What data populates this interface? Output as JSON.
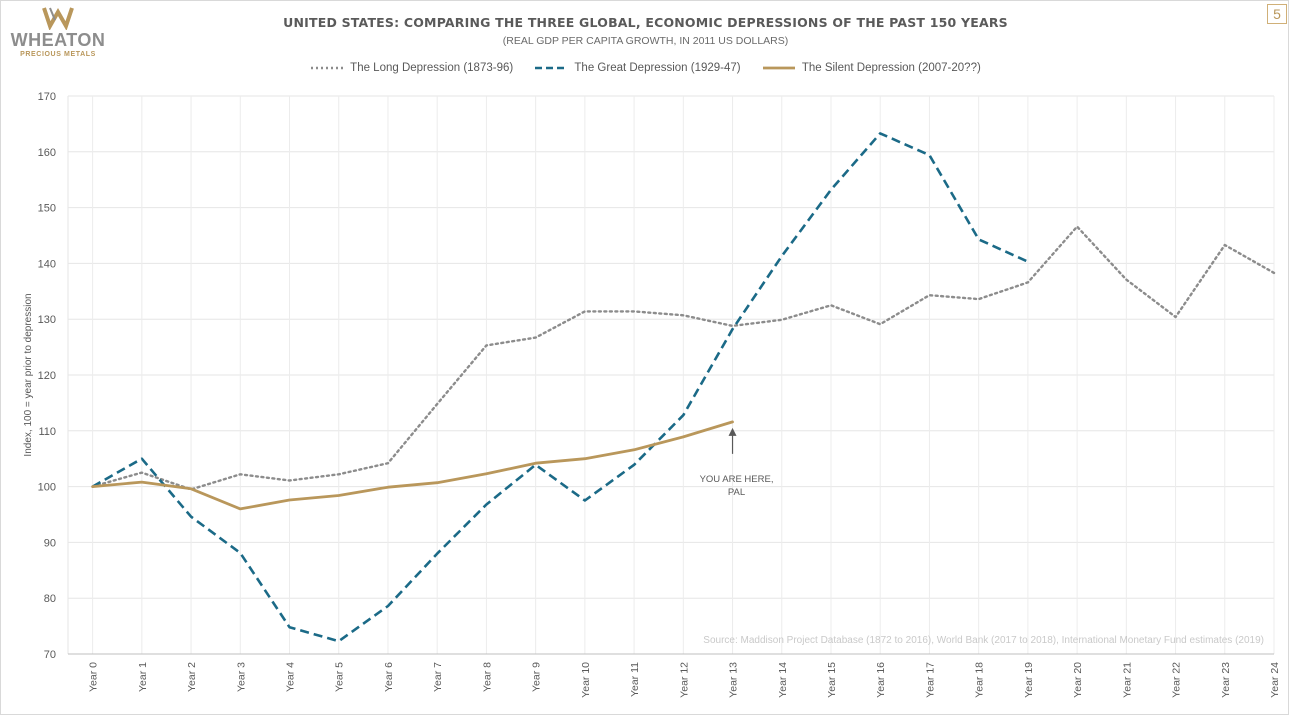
{
  "brand": {
    "name": "WHEATON",
    "tagline": "PRECIOUS METALS",
    "gold_color": "#b9975b"
  },
  "page_number": "5",
  "chart_data": {
    "type": "line",
    "title": "UNITED STATES: COMPARING THE THREE GLOBAL, ECONOMIC DEPRESSIONS OF THE PAST 150 YEARS",
    "subtitle": "(REAL GDP PER CAPITA GROWTH, IN 2011 US DOLLARS)",
    "ylabel": "Index, 100 = year prior to depression",
    "xlabel": "",
    "ylim": [
      70,
      170
    ],
    "yticks": [
      70,
      80,
      90,
      100,
      110,
      120,
      130,
      140,
      150,
      160,
      170
    ],
    "grid": true,
    "legend_position": "top-center",
    "categories": [
      "Year 0",
      "Year 1",
      "Year 2",
      "Year 3",
      "Year 4",
      "Year 5",
      "Year 6",
      "Year 7",
      "Year 8",
      "Year 9",
      "Year 10",
      "Year 11",
      "Year 12",
      "Year 13",
      "Year 14",
      "Year 15",
      "Year 16",
      "Year 17",
      "Year 18",
      "Year 19",
      "Year 20",
      "Year 21",
      "Year 22",
      "Year 23",
      "Year 24"
    ],
    "series": [
      {
        "name": "The Long Depression (1873-96)",
        "style": "dotted",
        "color": "#8c8c8c",
        "values": [
          100,
          102.5,
          99.5,
          102.2,
          101.1,
          102.2,
          104.2,
          114.8,
          125.3,
          126.7,
          131.4,
          131.4,
          130.7,
          128.8,
          129.9,
          132.5,
          129.1,
          134.3,
          133.6,
          136.6,
          146.6,
          137.1,
          130.4,
          143.3,
          138.3
        ]
      },
      {
        "name": "The Great Depression (1929-47)",
        "style": "dashed",
        "color": "#1b6a87",
        "values": [
          100,
          105.0,
          94.6,
          88.1,
          74.8,
          72.3,
          78.6,
          88.0,
          96.8,
          103.9,
          97.5,
          103.9,
          112.8,
          128.2,
          141.3,
          153.2,
          163.3,
          159.4,
          144.3,
          140.3,
          null,
          null,
          null,
          null,
          null
        ]
      },
      {
        "name": "The Silent Depression (2007-20??)",
        "style": "solid",
        "color": "#b9975b",
        "values": [
          100,
          100.8,
          99.6,
          96.0,
          97.6,
          98.4,
          99.9,
          100.7,
          102.3,
          104.2,
          105.0,
          106.6,
          108.9,
          111.6,
          null,
          null,
          null,
          null,
          null,
          null,
          null,
          null,
          null,
          null,
          null
        ]
      }
    ],
    "annotation": {
      "text_line1": "YOU ARE HERE,",
      "text_line2": "PAL",
      "category": "Year 13",
      "value": 111.6
    },
    "source": "Source: Maddison Project Database (1872 to 2016), World Bank (2017 to 2018), International Monetary Fund estimates (2019)"
  }
}
